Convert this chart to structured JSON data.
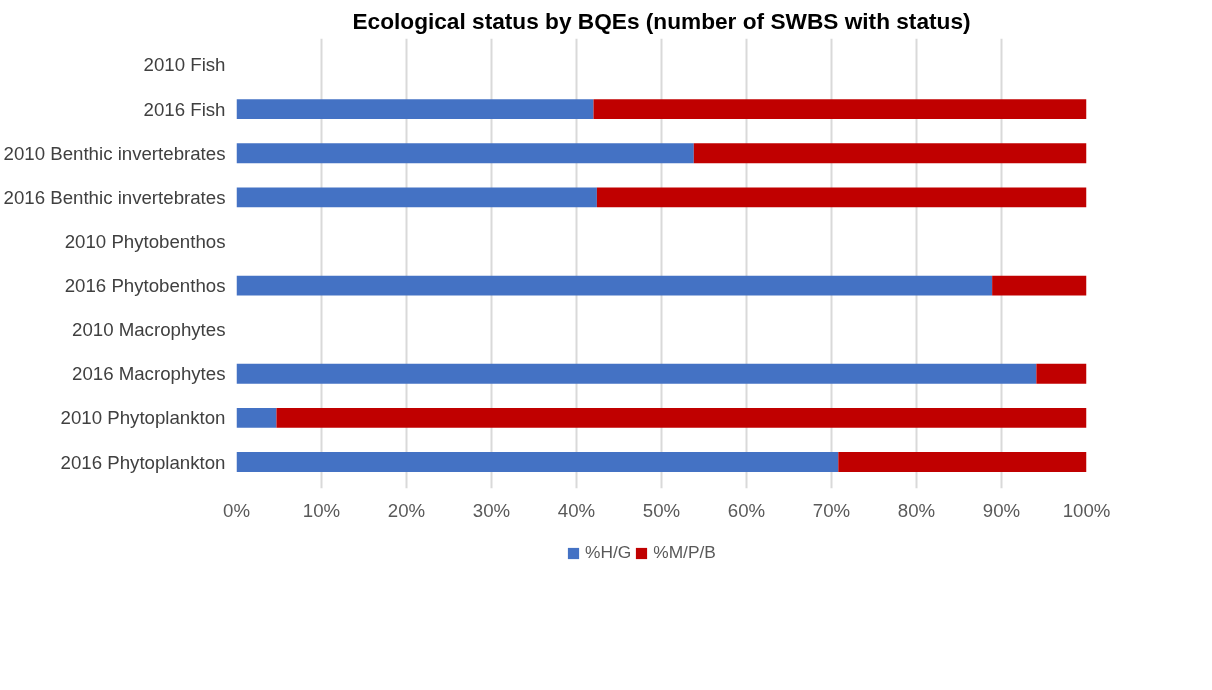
{
  "chart_data": {
    "type": "bar",
    "orientation": "horizontal",
    "stacked": true,
    "title": "Ecological status by BQEs (number of SWBS with status)",
    "categories": [
      "2010 Fish",
      "2016 Fish",
      "2010 Benthic invertebrates",
      "2016 Benthic invertebrates",
      "2010 Phytobenthos",
      "2016 Phytobenthos",
      "2010 Macrophytes",
      "2016 Macrophytes",
      "2010 Phytoplankton",
      "2016 Phytoplankton"
    ],
    "series": [
      {
        "name": "%H/G",
        "color": "#4472c4",
        "values": [
          null,
          42,
          53.8,
          42.4,
          null,
          88.9,
          null,
          94.1,
          4.7,
          70.8
        ]
      },
      {
        "name": "%M/P/B",
        "color": "#c00000",
        "values": [
          null,
          58,
          46.2,
          57.6,
          null,
          11.1,
          null,
          5.9,
          95.3,
          29.2
        ]
      }
    ],
    "xlim": [
      0,
      100
    ],
    "xticks": [
      {
        "value": 0,
        "label": "0%"
      },
      {
        "value": 10,
        "label": "10%"
      },
      {
        "value": 20,
        "label": "20%"
      },
      {
        "value": 30,
        "label": "30%"
      },
      {
        "value": 40,
        "label": "40%"
      },
      {
        "value": 50,
        "label": "50%"
      },
      {
        "value": 60,
        "label": "60%"
      },
      {
        "value": 70,
        "label": "70%"
      },
      {
        "value": 80,
        "label": "80%"
      },
      {
        "value": 90,
        "label": "90%"
      },
      {
        "value": 100,
        "label": "100%"
      }
    ],
    "grid": "x",
    "legend": "bottom"
  }
}
